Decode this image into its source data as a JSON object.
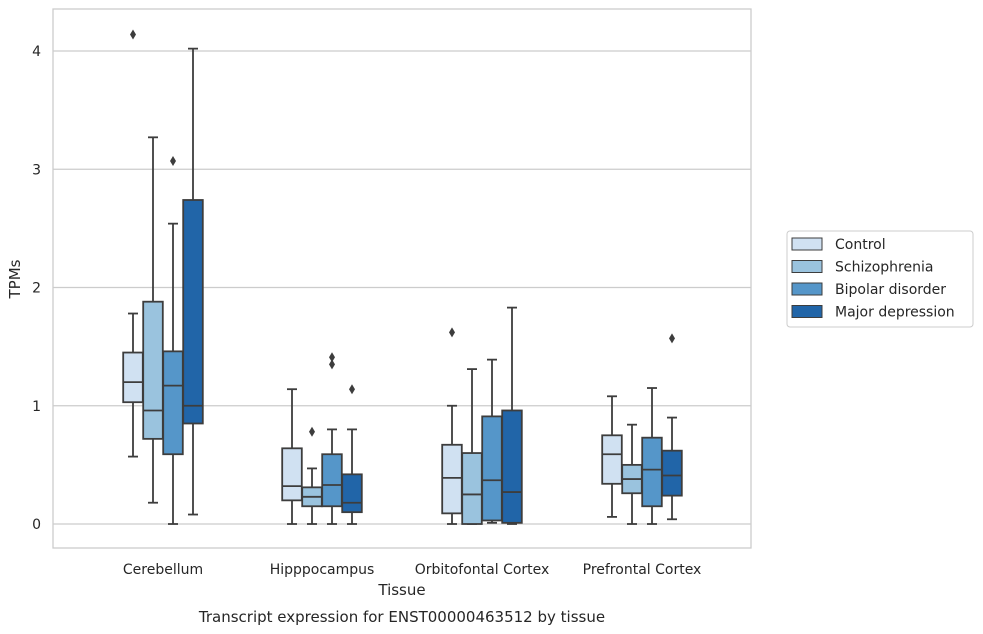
{
  "chart_data": {
    "type": "box",
    "xlabel": "Tissue",
    "ylabel": "TPMs",
    "caption": "Transcript expression for ENST00000463512 by tissue",
    "ylim": [
      -0.2,
      4.35
    ],
    "yticks": [
      0,
      1,
      2,
      3,
      4
    ],
    "grid": "horizontal",
    "legend_position": "right",
    "categories": [
      "Cerebellum",
      "Hipppocampus",
      "Orbitofontal Cortex",
      "Prefrontal Cortex"
    ],
    "series": [
      {
        "name": "Control",
        "color": "#d0e1f2",
        "boxes": [
          {
            "whislo": 0.57,
            "q1": 1.03,
            "med": 1.2,
            "q3": 1.45,
            "whishi": 1.78,
            "fliers": [
              4.14
            ]
          },
          {
            "whislo": 0.0,
            "q1": 0.2,
            "med": 0.32,
            "q3": 0.64,
            "whishi": 1.14,
            "fliers": []
          },
          {
            "whislo": 0.0,
            "q1": 0.09,
            "med": 0.39,
            "q3": 0.67,
            "whishi": 1.0,
            "fliers": [
              1.62
            ]
          },
          {
            "whislo": 0.06,
            "q1": 0.34,
            "med": 0.59,
            "q3": 0.75,
            "whishi": 1.08,
            "fliers": []
          }
        ]
      },
      {
        "name": "Schizophrenia",
        "color": "#9ac3de",
        "boxes": [
          {
            "whislo": 0.18,
            "q1": 0.72,
            "med": 0.96,
            "q3": 1.88,
            "whishi": 3.27,
            "fliers": []
          },
          {
            "whislo": 0.0,
            "q1": 0.15,
            "med": 0.23,
            "q3": 0.31,
            "whishi": 0.47,
            "fliers": [
              0.78
            ]
          },
          {
            "whislo": 0.0,
            "q1": 0.0,
            "med": 0.25,
            "q3": 0.6,
            "whishi": 1.31,
            "fliers": []
          },
          {
            "whislo": 0.0,
            "q1": 0.26,
            "med": 0.38,
            "q3": 0.5,
            "whishi": 0.84,
            "fliers": []
          }
        ]
      },
      {
        "name": "Bipolar disorder",
        "color": "#5596c9",
        "boxes": [
          {
            "whislo": 0.0,
            "q1": 0.59,
            "med": 1.17,
            "q3": 1.46,
            "whishi": 2.54,
            "fliers": [
              3.07
            ]
          },
          {
            "whislo": 0.0,
            "q1": 0.15,
            "med": 0.33,
            "q3": 0.59,
            "whishi": 0.8,
            "fliers": [
              1.35,
              1.41
            ]
          },
          {
            "whislo": 0.01,
            "q1": 0.03,
            "med": 0.37,
            "q3": 0.91,
            "whishi": 1.39,
            "fliers": []
          },
          {
            "whislo": 0.0,
            "q1": 0.15,
            "med": 0.46,
            "q3": 0.73,
            "whishi": 1.15,
            "fliers": []
          }
        ]
      },
      {
        "name": "Major depression",
        "color": "#2165a8",
        "boxes": [
          {
            "whislo": 0.08,
            "q1": 0.85,
            "med": 1.0,
            "q3": 2.74,
            "whishi": 4.02,
            "fliers": []
          },
          {
            "whislo": 0.0,
            "q1": 0.1,
            "med": 0.18,
            "q3": 0.42,
            "whishi": 0.8,
            "fliers": [
              1.14
            ]
          },
          {
            "whislo": 0.0,
            "q1": 0.01,
            "med": 0.27,
            "q3": 0.96,
            "whishi": 1.83,
            "fliers": []
          },
          {
            "whislo": 0.04,
            "q1": 0.24,
            "med": 0.41,
            "q3": 0.62,
            "whishi": 0.9,
            "fliers": [
              1.57
            ]
          }
        ]
      }
    ]
  }
}
